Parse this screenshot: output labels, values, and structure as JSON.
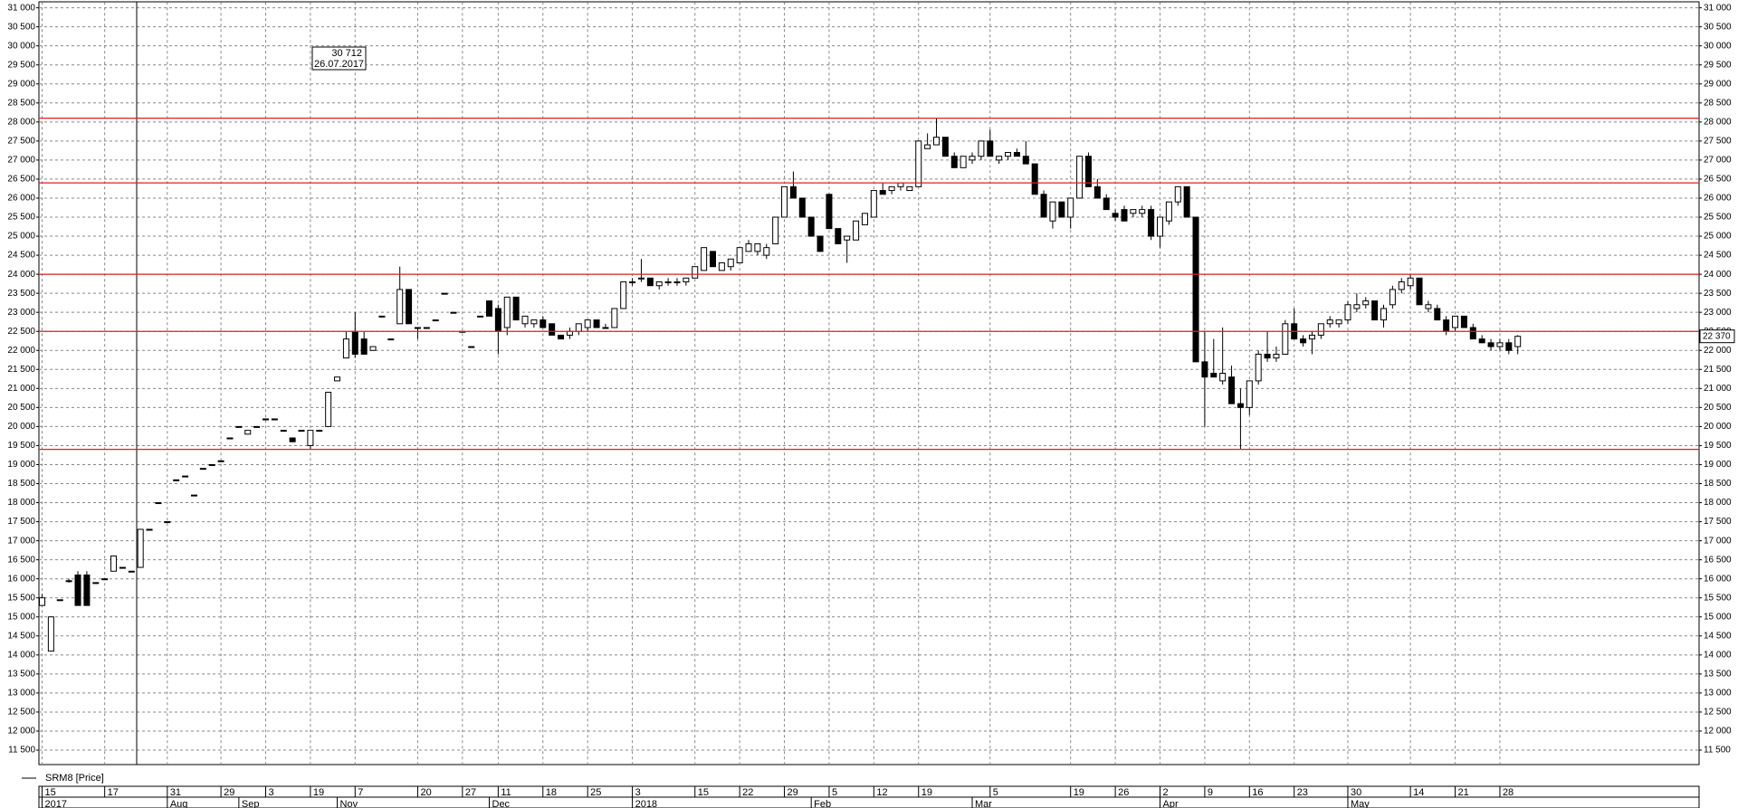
{
  "chart_data": {
    "type": "candlestick",
    "series": [
      {
        "name": "SRM8 [Price]",
        "up_color": "#ffffff",
        "down_color": "#000000",
        "open": [
          15300,
          14100,
          15450,
          15950,
          16100,
          16100,
          15900,
          16000,
          16200,
          16300,
          16200,
          16300,
          17300,
          18000,
          17500,
          18600,
          18700,
          18200,
          18900,
          19000,
          19100,
          19700,
          20000,
          19800,
          20000,
          20200,
          20200,
          19900,
          19700,
          19900,
          19500,
          19900,
          20000,
          21200,
          21800,
          22500,
          22300,
          22000,
          22900,
          22300,
          22700,
          23600,
          22600,
          22600,
          22800,
          23500,
          23000,
          22500,
          22100,
          22900,
          23300,
          23100,
          22600,
          23400,
          22700,
          22700,
          22800,
          22700,
          22400,
          22400,
          22500,
          22600,
          22800,
          22600,
          22600,
          23100,
          23800,
          23900,
          23900,
          23700,
          23800,
          23800,
          23800,
          23900,
          24100,
          24600,
          24100,
          24200,
          24300,
          24600,
          24600,
          24500,
          24800,
          25500,
          26300,
          26000,
          25500,
          25000,
          26100,
          25200,
          24900,
          24900,
          25300,
          25500,
          26200,
          26200,
          26300,
          26200,
          26300,
          27300,
          27400,
          27600,
          27100,
          26800,
          27000,
          27100,
          27500,
          27000,
          27100,
          27200,
          27100,
          26900,
          26100,
          25400,
          25900,
          25500,
          26000,
          27100,
          26300,
          26000,
          25600,
          25700,
          25600,
          25600,
          25700,
          25000,
          25400,
          25900,
          26300,
          25500,
          21700,
          21400,
          21200,
          21300,
          20600,
          20500,
          21200,
          21900,
          21800,
          21900,
          22700,
          22300,
          22300,
          22400,
          22700,
          22700,
          22800,
          23100,
          23200,
          23300,
          22800,
          23200,
          23600,
          23700,
          23900,
          23100,
          23100,
          22800,
          22600,
          22900,
          22600,
          22300,
          22200,
          22100,
          22200,
          22100
        ],
        "high": [
          15600,
          15000,
          15450,
          16000,
          16200,
          16200,
          15900,
          16000,
          16600,
          16300,
          16200,
          17300,
          17300,
          18000,
          17500,
          18600,
          18700,
          18200,
          18900,
          19000,
          19100,
          19700,
          20000,
          19900,
          20000,
          20200,
          20200,
          19900,
          19700,
          19900,
          19900,
          19900,
          20900,
          21300,
          22500,
          23000,
          22500,
          22100,
          22900,
          22300,
          24200,
          23600,
          22600,
          22600,
          22800,
          23500,
          23000,
          22500,
          22100,
          22900,
          23300,
          23200,
          23400,
          23400,
          22900,
          22800,
          22900,
          22700,
          22400,
          22600,
          22700,
          22800,
          22800,
          22700,
          23100,
          23800,
          23900,
          24400,
          23900,
          23800,
          23900,
          23900,
          23900,
          24200,
          24700,
          24600,
          24300,
          24400,
          24700,
          24900,
          24800,
          24800,
          25500,
          26300,
          26700,
          26000,
          25500,
          25000,
          26100,
          25200,
          25000,
          25400,
          25600,
          26200,
          26400,
          26300,
          26400,
          26300,
          27500,
          27700,
          28100,
          27600,
          27200,
          27100,
          27200,
          27500,
          27800,
          27100,
          27200,
          27300,
          27500,
          26900,
          26200,
          25900,
          25900,
          26000,
          27100,
          27200,
          26500,
          26100,
          25700,
          25800,
          25700,
          25800,
          25800,
          25500,
          25900,
          26300,
          26300,
          25500,
          22500,
          22300,
          22600,
          21600,
          21000,
          21200,
          22000,
          22500,
          22100,
          22800,
          23100,
          22400,
          22500,
          22700,
          22900,
          22800,
          23300,
          23500,
          23400,
          23300,
          23200,
          23700,
          23900,
          24000,
          23900,
          23300,
          23200,
          22900,
          22900,
          22900,
          22700,
          22400,
          22300,
          22300,
          22300,
          22400
        ],
        "low": [
          15300,
          14100,
          15450,
          15900,
          15300,
          15300,
          15900,
          16000,
          16200,
          16300,
          16200,
          16300,
          17300,
          18000,
          17500,
          18600,
          18700,
          18200,
          18900,
          19000,
          19100,
          19700,
          20000,
          19800,
          20000,
          20200,
          20200,
          19900,
          19600,
          19900,
          19400,
          19900,
          20000,
          21200,
          21800,
          21800,
          21900,
          22000,
          22900,
          22300,
          22700,
          22700,
          22300,
          22600,
          22800,
          23500,
          23000,
          22500,
          22100,
          22900,
          22900,
          21900,
          22400,
          22800,
          22600,
          22600,
          22600,
          22400,
          22300,
          22300,
          22400,
          22500,
          22600,
          22600,
          22600,
          23100,
          23700,
          23800,
          23700,
          23600,
          23700,
          23700,
          23700,
          23900,
          24100,
          24200,
          24100,
          24100,
          24300,
          24600,
          24500,
          24400,
          24800,
          25500,
          26000,
          25500,
          25000,
          24600,
          25200,
          24800,
          24300,
          24900,
          25300,
          25500,
          26100,
          26100,
          26200,
          26200,
          26300,
          27300,
          27400,
          27100,
          26800,
          26800,
          26900,
          27000,
          27100,
          26900,
          27000,
          27100,
          26900,
          26100,
          25500,
          25200,
          25500,
          25200,
          26000,
          26300,
          26000,
          25700,
          25400,
          25400,
          25500,
          25500,
          24900,
          24700,
          25300,
          25800,
          25500,
          21700,
          20000,
          21300,
          21100,
          20600,
          19400,
          20300,
          21100,
          21700,
          21700,
          21900,
          22300,
          22100,
          21900,
          22300,
          22600,
          22600,
          22700,
          23000,
          23100,
          22800,
          22600,
          23100,
          23500,
          23600,
          23200,
          23000,
          22800,
          22400,
          22500,
          22600,
          22300,
          22200,
          22000,
          22000,
          21900,
          21900
        ],
        "close": [
          15500,
          15000,
          15450,
          15950,
          15300,
          15300,
          15900,
          16000,
          16600,
          16300,
          16200,
          17300,
          17300,
          18000,
          17500,
          18600,
          18700,
          18200,
          18900,
          19000,
          19100,
          19700,
          20000,
          19900,
          20000,
          20200,
          20200,
          19900,
          19600,
          19900,
          19900,
          19900,
          20900,
          21300,
          22300,
          21900,
          21900,
          22100,
          22900,
          22300,
          23600,
          22700,
          22600,
          22600,
          22800,
          23500,
          23000,
          22500,
          22100,
          22900,
          22900,
          22500,
          23400,
          22800,
          22900,
          22800,
          22600,
          22400,
          22300,
          22500,
          22700,
          22800,
          22600,
          22600,
          23100,
          23800,
          23800,
          23900,
          23700,
          23800,
          23800,
          23800,
          23900,
          24200,
          24700,
          24200,
          24300,
          24400,
          24700,
          24800,
          24800,
          24700,
          25500,
          26300,
          26000,
          25500,
          25000,
          24600,
          25200,
          24800,
          25000,
          25400,
          25600,
          26200,
          26100,
          26300,
          26400,
          26300,
          27500,
          27400,
          27600,
          27100,
          26800,
          27100,
          27100,
          27500,
          27100,
          27100,
          27200,
          27100,
          26900,
          26100,
          25500,
          25900,
          25500,
          26000,
          27100,
          26300,
          26000,
          25700,
          25500,
          25400,
          25700,
          25700,
          25000,
          25500,
          25900,
          26300,
          25500,
          21700,
          21300,
          21300,
          21400,
          20600,
          20500,
          21200,
          21900,
          21800,
          21900,
          22700,
          22300,
          22200,
          22400,
          22700,
          22800,
          22800,
          23200,
          23200,
          23300,
          22800,
          23100,
          23600,
          23800,
          23900,
          23200,
          23200,
          22800,
          22500,
          22900,
          22600,
          22300,
          22200,
          22100,
          22200,
          22000,
          22370
        ]
      }
    ],
    "last_value_label": "22 370",
    "annotation": [
      "30 712",
      "26.07.2017"
    ],
    "hlines": [
      28100,
      26400,
      24000,
      22500,
      19400
    ],
    "hline_color": "#e02020",
    "ylim": [
      11120,
      31150
    ],
    "yticks": [
      {
        "value": 11500,
        "label": "11 500"
      },
      {
        "value": 12000,
        "label": "12 000"
      },
      {
        "value": 12500,
        "label": "12 500"
      },
      {
        "value": 13000,
        "label": "13 000"
      },
      {
        "value": 13500,
        "label": "13 500"
      },
      {
        "value": 14000,
        "label": "14 000"
      },
      {
        "value": 14500,
        "label": "14 500"
      },
      {
        "value": 15000,
        "label": "15 000"
      },
      {
        "value": 15500,
        "label": "15 500"
      },
      {
        "value": 16000,
        "label": "16 000"
      },
      {
        "value": 16500,
        "label": "16 500"
      },
      {
        "value": 17000,
        "label": "17 000"
      },
      {
        "value": 17500,
        "label": "17 500"
      },
      {
        "value": 18000,
        "label": "18 000"
      },
      {
        "value": 18500,
        "label": "18 500"
      },
      {
        "value": 19000,
        "label": "19 000"
      },
      {
        "value": 19500,
        "label": "19 500"
      },
      {
        "value": 20000,
        "label": "20 000"
      },
      {
        "value": 20500,
        "label": "20 500"
      },
      {
        "value": 21000,
        "label": "21 000"
      },
      {
        "value": 21500,
        "label": "21 500"
      },
      {
        "value": 22000,
        "label": "22 000"
      },
      {
        "value": 22500,
        "label": "22 500"
      },
      {
        "value": 23000,
        "label": "23 000"
      },
      {
        "value": 23500,
        "label": "23 500"
      },
      {
        "value": 24000,
        "label": "24 000"
      },
      {
        "value": 24500,
        "label": "24 500"
      },
      {
        "value": 25000,
        "label": "25 000"
      },
      {
        "value": 25500,
        "label": "25 500"
      },
      {
        "value": 26000,
        "label": "26 000"
      },
      {
        "value": 26500,
        "label": "26 500"
      },
      {
        "value": 27000,
        "label": "27 000"
      },
      {
        "value": 27500,
        "label": "27 500"
      },
      {
        "value": 28000,
        "label": "28 000"
      },
      {
        "value": 28500,
        "label": "28 500"
      },
      {
        "value": 29000,
        "label": "29 000"
      },
      {
        "value": 29500,
        "label": "29 500"
      },
      {
        "value": 30000,
        "label": "30 000"
      },
      {
        "value": 30500,
        "label": "30 500"
      },
      {
        "value": 31000,
        "label": "31 000"
      }
    ],
    "xticks": [
      {
        "value": 0,
        "label": "15"
      },
      {
        "value": 7,
        "label": "17"
      },
      {
        "value": 14,
        "label": "31"
      },
      {
        "value": 20,
        "label": "29"
      },
      {
        "value": 25,
        "label": "3"
      },
      {
        "value": 30,
        "label": "19"
      },
      {
        "value": 35,
        "label": "7"
      },
      {
        "value": 42,
        "label": "20"
      },
      {
        "value": 47,
        "label": "27"
      },
      {
        "value": 51,
        "label": "11"
      },
      {
        "value": 56,
        "label": "18"
      },
      {
        "value": 61,
        "label": "25"
      },
      {
        "value": 66,
        "label": "3"
      },
      {
        "value": 73,
        "label": "15"
      },
      {
        "value": 78,
        "label": "22"
      },
      {
        "value": 83,
        "label": "29"
      },
      {
        "value": 88,
        "label": "5"
      },
      {
        "value": 93,
        "label": "12"
      },
      {
        "value": 98,
        "label": "19"
      },
      {
        "value": 106,
        "label": "5"
      },
      {
        "value": 115,
        "label": "19"
      },
      {
        "value": 120,
        "label": "26"
      },
      {
        "value": 125,
        "label": "2"
      },
      {
        "value": 130,
        "label": "9"
      },
      {
        "value": 135,
        "label": "16"
      },
      {
        "value": 140,
        "label": "23"
      },
      {
        "value": 146,
        "label": "30"
      },
      {
        "value": 153,
        "label": "14"
      },
      {
        "value": 158,
        "label": "21"
      },
      {
        "value": 163,
        "label": "28"
      }
    ],
    "month_ticks": [
      {
        "value": 0,
        "label": "2017"
      },
      {
        "value": 14,
        "label": "Aug"
      },
      {
        "value": 22,
        "label": "Sep"
      },
      {
        "value": 33,
        "label": "Nov"
      },
      {
        "value": 50,
        "label": "Dec"
      },
      {
        "value": 66,
        "label": "2018"
      },
      {
        "value": 86,
        "label": "Feb"
      },
      {
        "value": 104,
        "label": "Mar"
      },
      {
        "value": 125,
        "label": "Apr"
      },
      {
        "value": 146,
        "label": "May"
      }
    ],
    "grid": true
  }
}
